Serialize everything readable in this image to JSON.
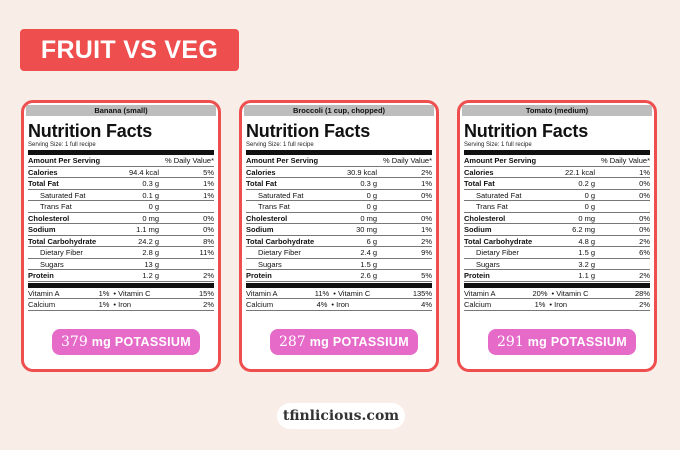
{
  "title": "FRUIT VS VEG",
  "logo_text": "tfinlicious.com",
  "labels": {
    "nf_title": "Nutrition Facts",
    "serving": "Serving Size: 1 full recipe",
    "amount_per_serving": "Amount Per Serving",
    "daily_value": "% Daily Value*",
    "calories": "Calories",
    "total_fat": "Total Fat",
    "saturated_fat": "Saturated Fat",
    "trans_fat": "Trans Fat",
    "cholesterol": "Cholesterol",
    "sodium": "Sodium",
    "total_carb": "Total Carbohydrate",
    "dietary_fiber": "Dietary Fiber",
    "sugars": "Sugars",
    "protein": "Protein",
    "vitamin_a": "Vitamin A",
    "vitamin_c": "• Vitamin C",
    "calcium": "Calcium",
    "iron": "• Iron",
    "potassium_unit": "mg POTASSIUM"
  },
  "cards": [
    {
      "food": "Banana (small)",
      "calories": {
        "amt": "94.4 kcal",
        "dv": "5%"
      },
      "total_fat": {
        "amt": "0.3 g",
        "dv": "1%"
      },
      "saturated_fat": {
        "amt": "0.1 g",
        "dv": "1%"
      },
      "trans_fat": {
        "amt": "0 g",
        "dv": ""
      },
      "cholesterol": {
        "amt": "0 mg",
        "dv": "0%"
      },
      "sodium": {
        "amt": "1.1 mg",
        "dv": "0%"
      },
      "total_carb": {
        "amt": "24.2 g",
        "dv": "8%"
      },
      "dietary_fiber": {
        "amt": "2.8 g",
        "dv": "11%"
      },
      "sugars": {
        "amt": "13 g",
        "dv": ""
      },
      "protein": {
        "amt": "1.2 g",
        "dv": "2%"
      },
      "vitamin_a": "1%",
      "vitamin_c": "15%",
      "calcium": "1%",
      "iron": "2%",
      "potassium": "379"
    },
    {
      "food": "Broccoli (1 cup, chopped)",
      "calories": {
        "amt": "30.9 kcal",
        "dv": "2%"
      },
      "total_fat": {
        "amt": "0.3 g",
        "dv": "1%"
      },
      "saturated_fat": {
        "amt": "0 g",
        "dv": "0%"
      },
      "trans_fat": {
        "amt": "0 g",
        "dv": ""
      },
      "cholesterol": {
        "amt": "0 mg",
        "dv": "0%"
      },
      "sodium": {
        "amt": "30 mg",
        "dv": "1%"
      },
      "total_carb": {
        "amt": "6 g",
        "dv": "2%"
      },
      "dietary_fiber": {
        "amt": "2.4 g",
        "dv": "9%"
      },
      "sugars": {
        "amt": "1.5 g",
        "dv": ""
      },
      "protein": {
        "amt": "2.6 g",
        "dv": "5%"
      },
      "vitamin_a": "11%",
      "vitamin_c": "135%",
      "calcium": "4%",
      "iron": "4%",
      "potassium": "287"
    },
    {
      "food": "Tomato (medium)",
      "calories": {
        "amt": "22.1 kcal",
        "dv": "1%"
      },
      "total_fat": {
        "amt": "0.2 g",
        "dv": "0%"
      },
      "saturated_fat": {
        "amt": "0 g",
        "dv": "0%"
      },
      "trans_fat": {
        "amt": "0 g",
        "dv": ""
      },
      "cholesterol": {
        "amt": "0 mg",
        "dv": "0%"
      },
      "sodium": {
        "amt": "6.2 mg",
        "dv": "0%"
      },
      "total_carb": {
        "amt": "4.8 g",
        "dv": "2%"
      },
      "dietary_fiber": {
        "amt": "1.5 g",
        "dv": "6%"
      },
      "sugars": {
        "amt": "3.2 g",
        "dv": ""
      },
      "protein": {
        "amt": "1.1 g",
        "dv": "2%"
      },
      "vitamin_a": "20%",
      "vitamin_c": "28%",
      "calcium": "1%",
      "iron": "2%",
      "potassium": "291"
    }
  ]
}
